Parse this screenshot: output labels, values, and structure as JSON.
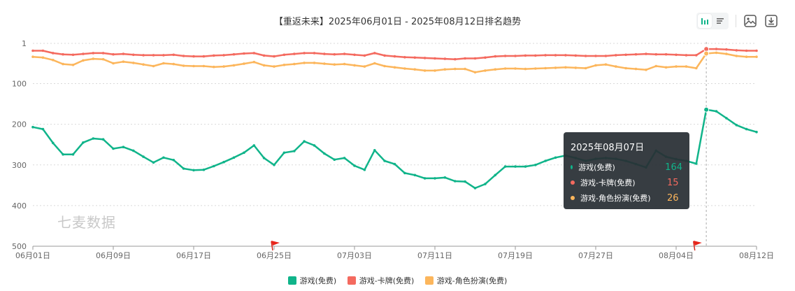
{
  "title": "【重返未来】2025年06月01日 - 2025年08月12日排名趋势",
  "watermark": "七麦数据",
  "toolbar": {
    "buttons": [
      "bar-chart-icon",
      "list-icon",
      "image-icon",
      "download-icon"
    ]
  },
  "colors": {
    "green": "#10b48a",
    "red": "#f46a5f",
    "orange": "#fcb65c",
    "axis": "#999999",
    "grid": "#d9d9d9"
  },
  "chart_data": {
    "type": "line",
    "title": "【重返未来】2025年06月01日 - 2025年08月12日排名趋势",
    "x_start": "2025-06-01",
    "x_end": "2025-08-12",
    "x_ticks": [
      "06月01日",
      "06月09日",
      "06月17日",
      "06月25日",
      "07月03日",
      "07月11日",
      "07月19日",
      "07月27日",
      "08月04日",
      "08月12日"
    ],
    "y_ticks": [
      "1",
      "100",
      "200",
      "300",
      "400",
      "500"
    ],
    "y_tick_values": [
      1,
      100,
      200,
      300,
      400,
      500
    ],
    "ylim": [
      1,
      500
    ],
    "y_inverted": true,
    "grid": true,
    "legend_position": "bottom",
    "flags": [
      "2025-06-25",
      "2025-08-06"
    ],
    "crosshair_date": "2025-08-07",
    "series": [
      {
        "name": "游戏(免费)",
        "color": "#10b48a",
        "values": [
          207,
          212,
          246,
          274,
          274,
          245,
          235,
          237,
          260,
          256,
          265,
          280,
          294,
          282,
          288,
          309,
          313,
          312,
          303,
          293,
          282,
          270,
          252,
          283,
          300,
          270,
          266,
          242,
          252,
          272,
          287,
          283,
          302,
          312,
          264,
          290,
          298,
          320,
          325,
          333,
          333,
          331,
          340,
          341,
          357,
          347,
          325,
          304,
          304,
          304,
          300,
          290,
          282,
          277,
          283,
          290,
          285,
          283,
          285,
          290,
          298,
          306,
          265,
          280,
          286,
          290,
          297,
          164,
          168,
          185,
          202,
          212,
          219
        ]
      },
      {
        "name": "游戏-卡牌(免费)",
        "color": "#f46a5f",
        "values": [
          19,
          19,
          25,
          28,
          29,
          27,
          25,
          25,
          28,
          27,
          29,
          30,
          30,
          30,
          29,
          32,
          33,
          33,
          31,
          30,
          28,
          26,
          25,
          31,
          33,
          29,
          27,
          25,
          25,
          27,
          28,
          27,
          29,
          31,
          25,
          31,
          33,
          35,
          36,
          37,
          38,
          39,
          40,
          38,
          38,
          36,
          33,
          32,
          32,
          31,
          31,
          30,
          30,
          30,
          31,
          32,
          32,
          32,
          30,
          29,
          28,
          27,
          28,
          28,
          29,
          30,
          30,
          15,
          15,
          16,
          18,
          19,
          19
        ]
      },
      {
        "name": "游戏-角色扮演(免费)",
        "color": "#fcb65c",
        "values": [
          34,
          36,
          42,
          52,
          54,
          43,
          39,
          40,
          50,
          46,
          49,
          53,
          57,
          50,
          52,
          56,
          57,
          57,
          59,
          58,
          55,
          51,
          47,
          55,
          58,
          54,
          52,
          49,
          49,
          51,
          53,
          52,
          55,
          58,
          50,
          57,
          60,
          63,
          65,
          68,
          68,
          65,
          64,
          64,
          72,
          68,
          65,
          63,
          63,
          64,
          63,
          62,
          61,
          60,
          61,
          62,
          55,
          53,
          58,
          62,
          64,
          66,
          57,
          60,
          58,
          58,
          62,
          26,
          24,
          27,
          32,
          34,
          34
        ]
      }
    ]
  },
  "tooltip": {
    "date": "2025年08月07日",
    "rows": [
      {
        "name": "游戏(免费)",
        "value": "164",
        "color": "#10b48a"
      },
      {
        "name": "游戏-卡牌(免费)",
        "value": "15",
        "color": "#f46a5f"
      },
      {
        "name": "游戏-角色扮演(免费)",
        "value": "26",
        "color": "#fcb65c"
      }
    ]
  },
  "legend": [
    {
      "name": "游戏(免费)",
      "color": "#10b48a"
    },
    {
      "name": "游戏-卡牌(免费)",
      "color": "#f46a5f"
    },
    {
      "name": "游戏-角色扮演(免费)",
      "color": "#fcb65c"
    }
  ]
}
